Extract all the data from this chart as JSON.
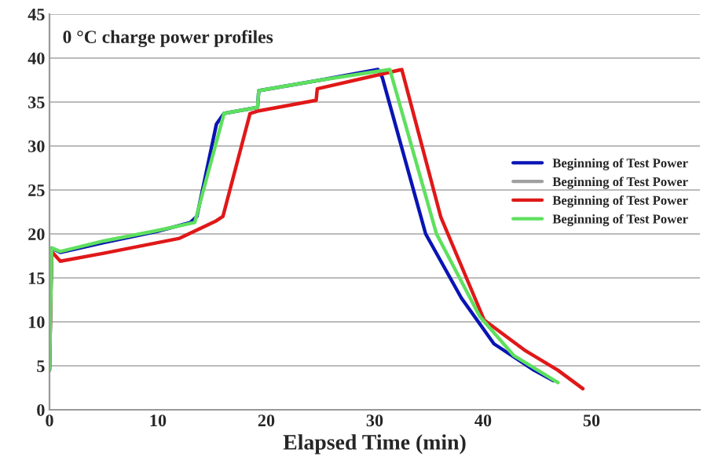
{
  "chart_data": {
    "type": "line",
    "title": "0 °C charge power profiles",
    "xlabel": "Elapsed Time (min)",
    "xlim": [
      0,
      60
    ],
    "xticks": [
      0,
      10,
      20,
      30,
      40,
      50
    ],
    "ylim": [
      0,
      45
    ],
    "yticks": [
      0,
      5,
      10,
      15,
      20,
      25,
      30,
      35,
      40,
      45
    ],
    "grid": "y",
    "legend": "right",
    "line_style": "solid",
    "marker": "none",
    "series": [
      {
        "name": "Beginning of Test Power",
        "color": "#0a14b4",
        "x": [
          0,
          0.2,
          1,
          5,
          10,
          13,
          13.6,
          15.4,
          16.1,
          19.2,
          19.3,
          25,
          30.3,
          30.7,
          34.7,
          38,
          41,
          44.7,
          46.5
        ],
        "values": [
          4.5,
          18.4,
          17.9,
          19,
          20.3,
          21.3,
          22,
          32.5,
          33.7,
          34.4,
          36.3,
          37.5,
          38.7,
          37.8,
          20,
          12.7,
          7.5,
          4.5,
          3.3
        ]
      },
      {
        "name": "Beginning of Test Power",
        "color": "#a0a0a0"
      },
      {
        "name": "Beginning of Test Power",
        "color": "#e01818",
        "x": [
          0,
          0.2,
          1,
          5,
          12,
          15.4,
          16,
          18.5,
          19.3,
          24.6,
          24.7,
          32.5,
          36.1,
          40.1,
          43.8,
          46.9,
          49.2
        ],
        "values": [
          4.5,
          18,
          16.9,
          17.8,
          19.5,
          21.5,
          22,
          33.7,
          34,
          35.2,
          36.5,
          38.7,
          21.9,
          10.2,
          6.8,
          4.5,
          2.4
        ]
      },
      {
        "name": "Beginning of Test Power",
        "color": "#5ee05e",
        "x": [
          0,
          0.2,
          1,
          5,
          10,
          13.4,
          16.1,
          19.2,
          19.3,
          25,
          31.4,
          35.7,
          39.7,
          42.8,
          46.9
        ],
        "values": [
          4.5,
          18.4,
          18,
          19.2,
          20.4,
          21.3,
          33.7,
          34.4,
          36.3,
          37.5,
          38.7,
          20,
          10.6,
          6.2,
          3.1
        ]
      }
    ]
  }
}
